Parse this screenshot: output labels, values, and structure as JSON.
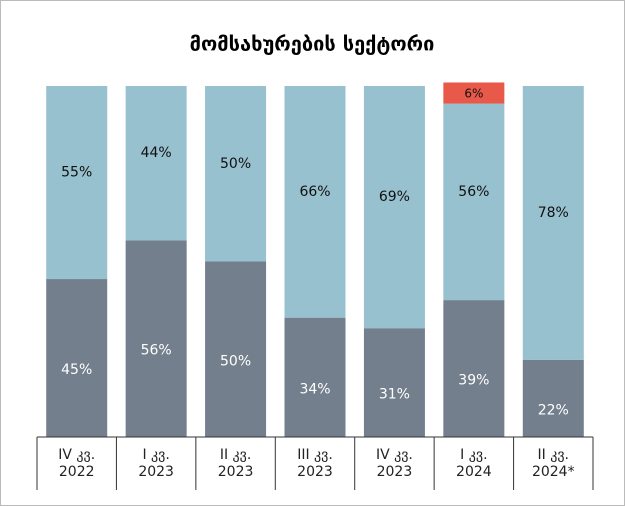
{
  "chart_data": {
    "type": "stacked_bar",
    "title": "მომსახურების სექტორი",
    "categories": [
      "IV კვ.\n2022",
      "I კვ.\n2023",
      "II კვ.\n2023",
      "III კვ.\n2023",
      "IV კვ.\n2023",
      "I კვ.\n2024",
      "II კვ.\n2024*"
    ],
    "series": [
      {
        "color": "#737f8c",
        "values": [
          45,
          56,
          50,
          34,
          31,
          39,
          22
        ],
        "value_labels": [
          "45%",
          "56%",
          "50%",
          "34%",
          "31%",
          "39%",
          "22%"
        ]
      },
      {
        "color": "#97c1cf",
        "values": [
          55,
          44,
          50,
          66,
          69,
          56,
          78
        ],
        "value_labels": [
          "55%",
          "44%",
          "50%",
          "66%",
          "69%",
          "56%",
          "78%"
        ]
      },
      {
        "color": "#e8594a",
        "values": [
          null,
          null,
          null,
          null,
          null,
          6,
          null
        ],
        "value_labels": [
          null,
          null,
          null,
          null,
          null,
          "6%",
          null
        ]
      }
    ],
    "ylim": [
      0,
      100
    ]
  }
}
